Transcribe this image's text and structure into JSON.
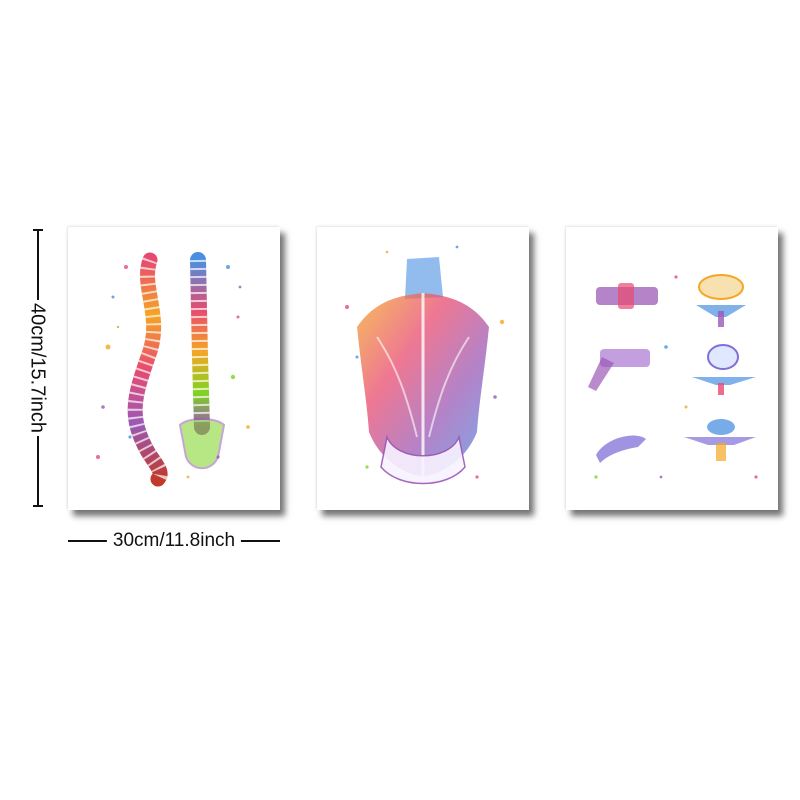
{
  "dimensions": {
    "height_label": "40cm/15.7inch",
    "width_label": "30cm/11.8inch"
  },
  "prints": [
    {
      "subject": "spine-side-and-back-view"
    },
    {
      "subject": "back-muscles"
    },
    {
      "subject": "vertebrae-set"
    }
  ],
  "colors": {
    "background": "#ffffff",
    "print_paper": "#ffffff",
    "ink": "#111111",
    "watercolor": [
      "#e84a6f",
      "#f5a623",
      "#f8e71c",
      "#7ed321",
      "#4a90e2",
      "#9b59b6",
      "#ff6f91"
    ]
  }
}
